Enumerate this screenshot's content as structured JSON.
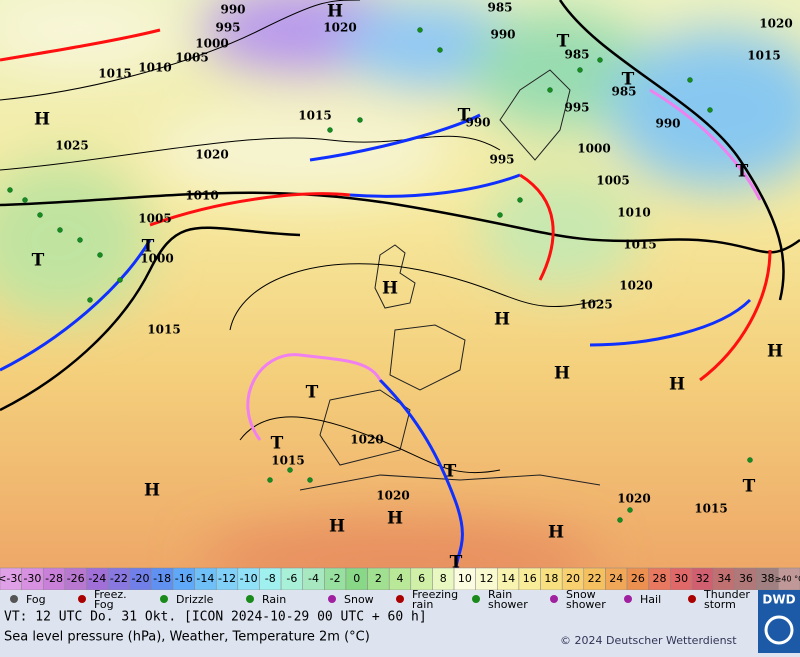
{
  "map": {
    "center_labels": [
      "H",
      "1020",
      "990",
      "995",
      "1000",
      "1005",
      "1010",
      "1015",
      "H",
      "1025",
      "1020",
      "985",
      "990",
      "T",
      "985",
      "995",
      "T",
      "985",
      "990",
      "1020",
      "1015",
      "1015",
      "T",
      "990",
      "995",
      "1000",
      "1005",
      "T",
      "1010",
      "1010",
      "1005",
      "T",
      "1000",
      "T",
      "1015",
      "1020",
      "1025",
      "H",
      "H",
      "H",
      "H",
      "H",
      "1015",
      "T",
      "1020",
      "T",
      "1015",
      "T",
      "H",
      "1020",
      "H",
      "H",
      "1020",
      "1015",
      "H",
      "T",
      "T"
    ]
  },
  "scale": {
    "labels": [
      "<-30",
      "-30",
      "-28",
      "-26",
      "-24",
      "-22",
      "-20",
      "-18",
      "-16",
      "-14",
      "-12",
      "-10",
      "-8",
      "-6",
      "-4",
      "-2",
      "0",
      "2",
      "4",
      "6",
      "8",
      "10",
      "12",
      "14",
      "16",
      "18",
      "20",
      "22",
      "24",
      "26",
      "28",
      "30",
      "32",
      "34",
      "36",
      "38",
      "≥40 °C"
    ],
    "colors": [
      "#e0a0e8",
      "#d890e0",
      "#c880d8",
      "#b878d0",
      "#a070d8",
      "#8878e0",
      "#7080e8",
      "#6090f0",
      "#60a8f8",
      "#70c0f8",
      "#80d0f8",
      "#90e0f8",
      "#a0f0f0",
      "#a8f0d8",
      "#a8e8c0",
      "#98e0a0",
      "#88d888",
      "#a0e090",
      "#b8e898",
      "#d0f0a8",
      "#e8f8c0",
      "#fcfce0",
      "#fafad0",
      "#f8f4b0",
      "#f8ec98",
      "#f8e080",
      "#f8d070",
      "#f4c060",
      "#f0a858",
      "#ec9050",
      "#e87860",
      "#e06868",
      "#d06070",
      "#c07070",
      "#b07878",
      "#a08080",
      "#c09898"
    ]
  },
  "legend": [
    "Fog",
    "Freez.\nFog",
    "Drizzle",
    "Rain",
    "Snow",
    "Freezing\nrain",
    "Rain\nshower",
    "Snow\nshower",
    "Hail",
    "Thunder\nstorm"
  ],
  "footer": {
    "valid_time": "VT: 12 UTC Do.  31 Okt. [ICON 2024-10-29  00 UTC + 60 h]",
    "description": "Sea level pressure (hPa), Weather, Temperature 2m (°C)",
    "copyright": "© 2024 Deutscher Wetterdienst",
    "logo": "DWD"
  }
}
